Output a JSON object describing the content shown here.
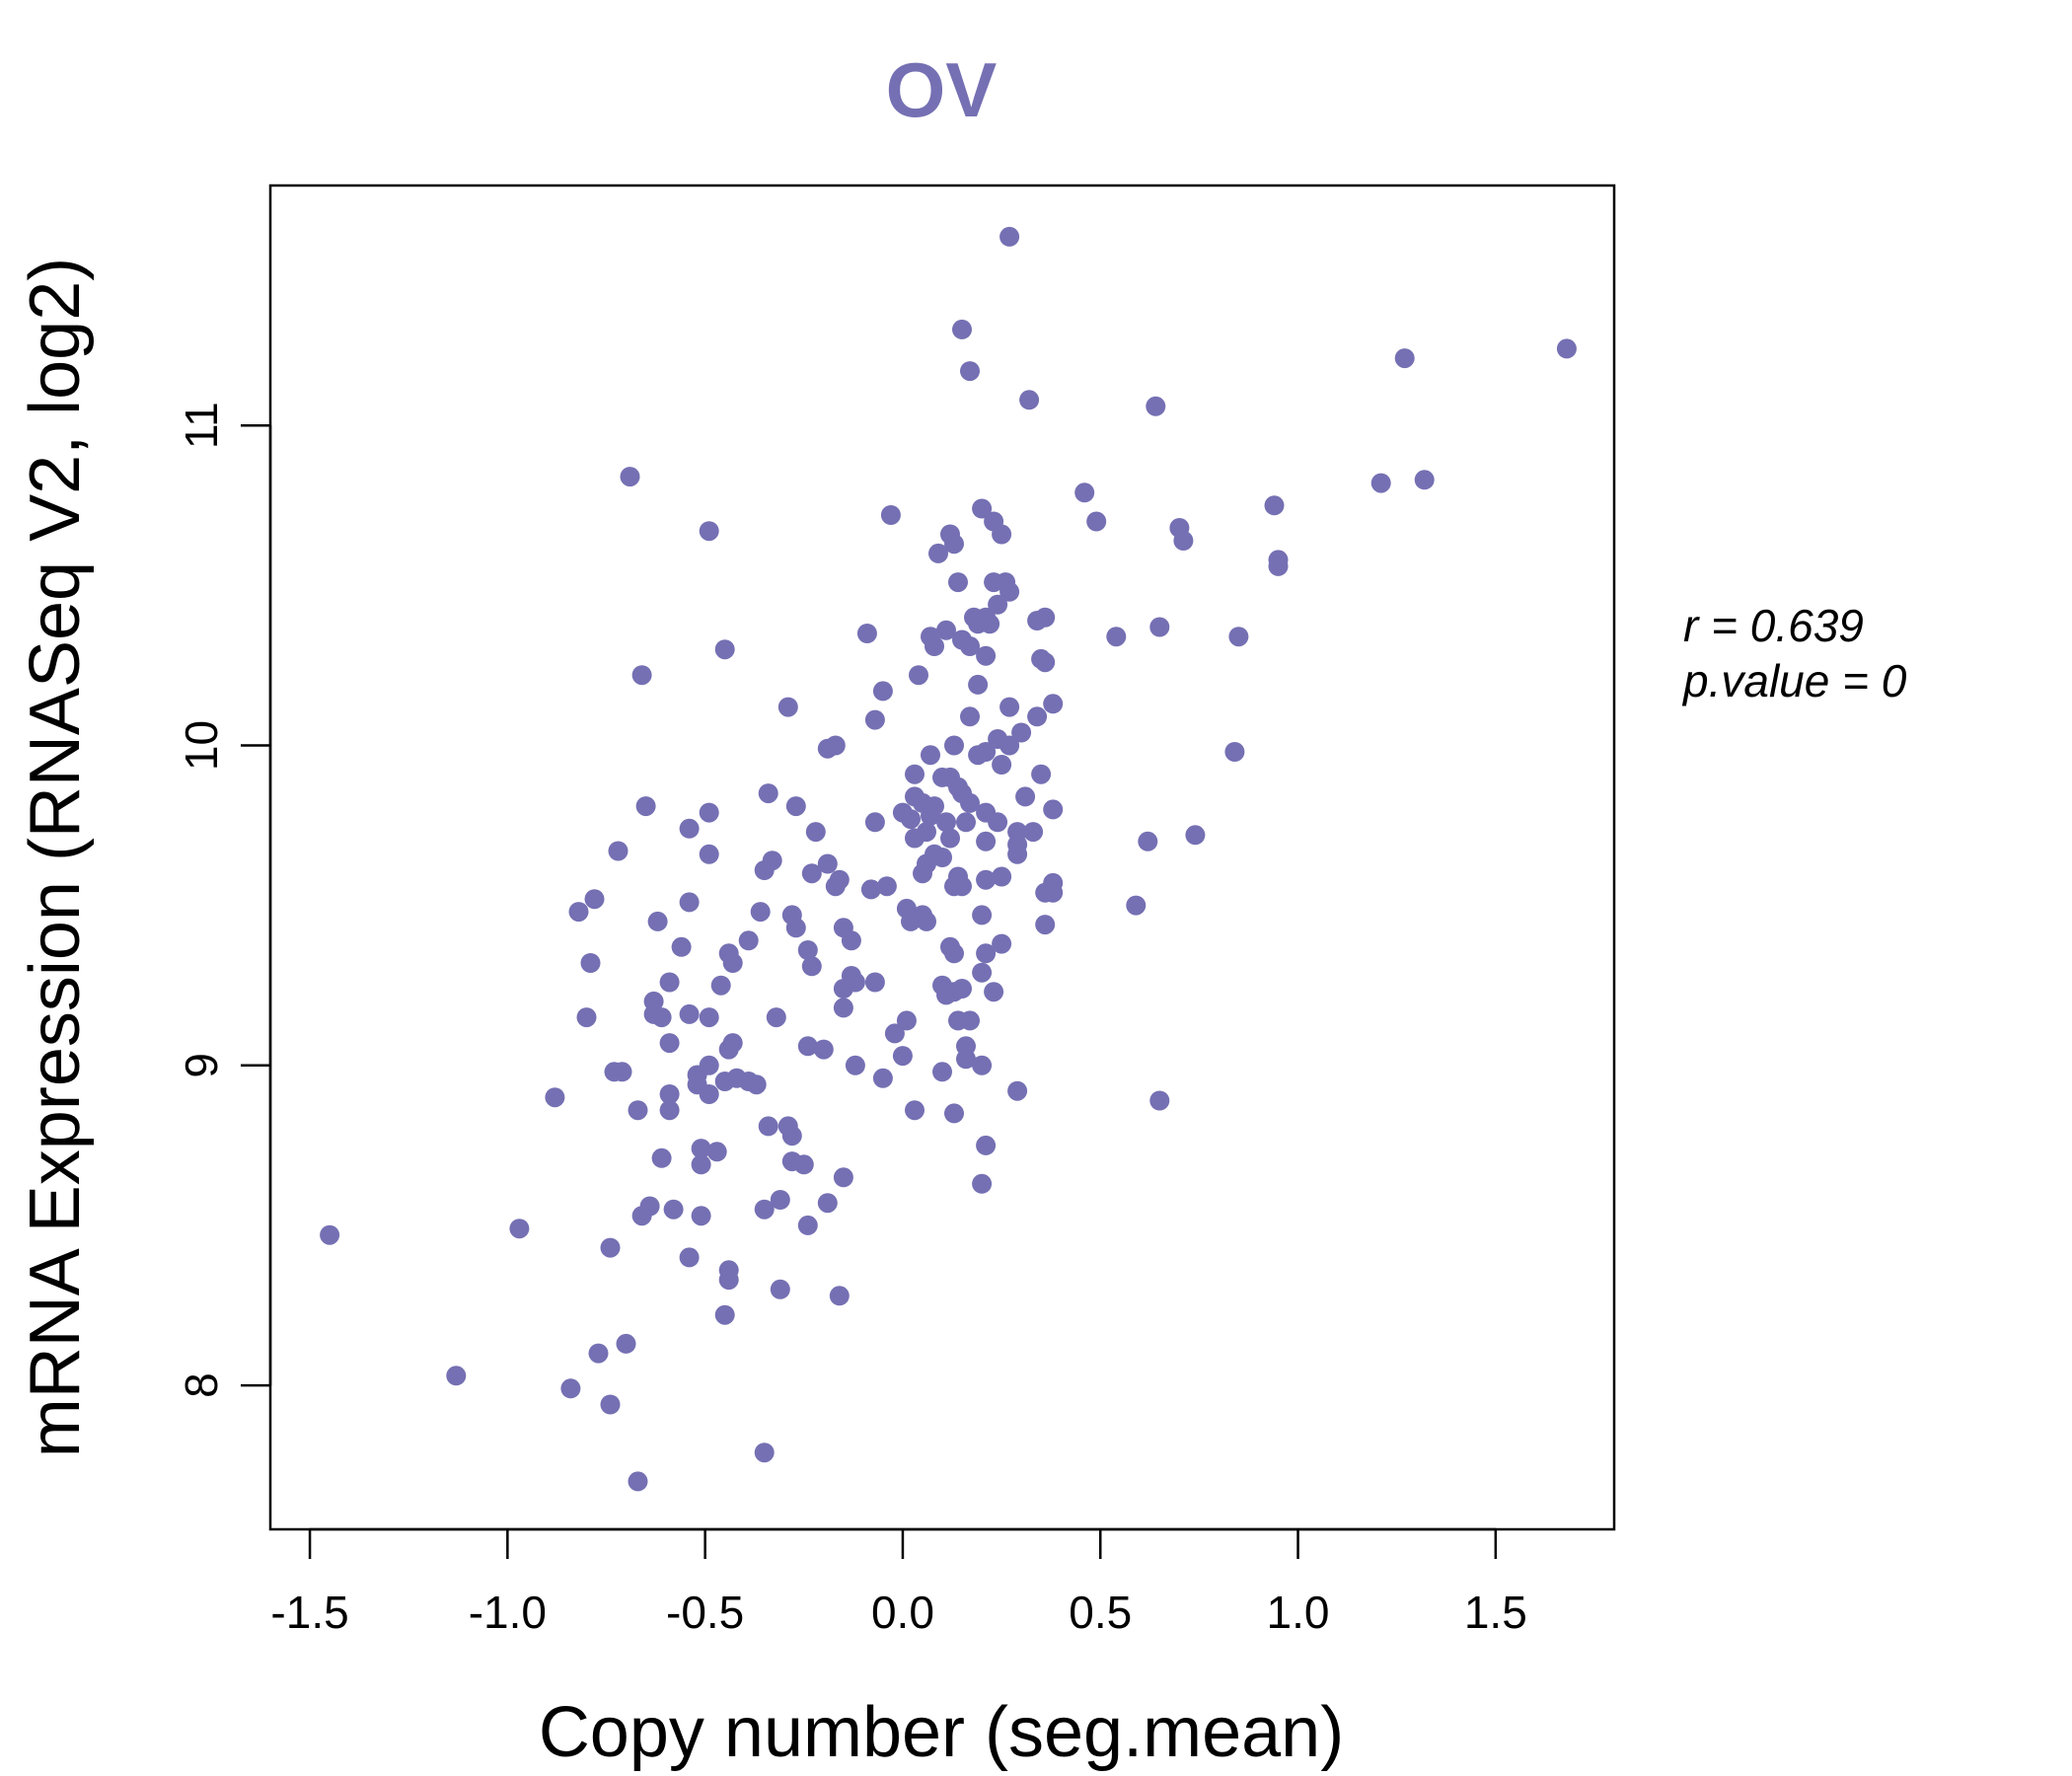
{
  "chart_data": {
    "type": "scatter",
    "title": "OV",
    "xlabel": "Copy number (seg.mean)",
    "ylabel": "mRNA Expression (RNASeq V2, log2)",
    "xlim": [
      -1.6,
      1.8
    ],
    "ylim": [
      7.55,
      11.75
    ],
    "x_ticks": [
      -1.5,
      -1.0,
      -0.5,
      0.0,
      0.5,
      1.0,
      1.5
    ],
    "x_tick_labels": [
      "-1.5",
      "-1.0",
      "-0.5",
      "0.0",
      "0.5",
      "1.0",
      "1.5"
    ],
    "y_ticks": [
      8,
      9,
      10,
      11
    ],
    "y_tick_labels": [
      "8",
      "9",
      "10",
      "11"
    ],
    "grid": false,
    "legend": null,
    "point_color": "#7570b3",
    "title_color": "#7570b3",
    "stats": {
      "r_label": "r = 0.639",
      "p_label": "p.value = 0"
    },
    "points": [
      [
        0.27,
        11.59
      ],
      [
        0.15,
        11.3
      ],
      [
        0.17,
        11.17
      ],
      [
        0.32,
        11.08
      ],
      [
        0.64,
        11.06
      ],
      [
        1.27,
        11.21
      ],
      [
        1.68,
        11.24
      ],
      [
        -0.69,
        10.84
      ],
      [
        -0.49,
        10.67
      ],
      [
        0.46,
        10.79
      ],
      [
        0.49,
        10.7
      ],
      [
        0.7,
        10.68
      ],
      [
        0.71,
        10.64
      ],
      [
        0.94,
        10.75
      ],
      [
        0.95,
        10.58
      ],
      [
        0.95,
        10.56
      ],
      [
        1.21,
        10.82
      ],
      [
        1.32,
        10.83
      ],
      [
        -0.03,
        10.72
      ],
      [
        0.12,
        10.66
      ],
      [
        0.13,
        10.63
      ],
      [
        0.09,
        10.6
      ],
      [
        0.2,
        10.74
      ],
      [
        0.23,
        10.7
      ],
      [
        0.25,
        10.66
      ],
      [
        0.14,
        10.51
      ],
      [
        0.23,
        10.51
      ],
      [
        0.26,
        10.51
      ],
      [
        0.27,
        10.48
      ],
      [
        0.24,
        10.44
      ],
      [
        0.18,
        10.4
      ],
      [
        0.19,
        10.38
      ],
      [
        0.21,
        10.4
      ],
      [
        0.22,
        10.38
      ],
      [
        0.34,
        10.39
      ],
      [
        0.36,
        10.4
      ],
      [
        0.11,
        10.36
      ],
      [
        0.07,
        10.34
      ],
      [
        0.15,
        10.33
      ],
      [
        0.17,
        10.31
      ],
      [
        0.08,
        10.31
      ],
      [
        0.21,
        10.28
      ],
      [
        -0.09,
        10.35
      ],
      [
        0.54,
        10.34
      ],
      [
        0.65,
        10.37
      ],
      [
        0.85,
        10.34
      ],
      [
        -0.45,
        10.3
      ],
      [
        -0.66,
        10.22
      ],
      [
        0.35,
        10.27
      ],
      [
        0.36,
        10.26
      ],
      [
        0.04,
        10.22
      ],
      [
        0.19,
        10.19
      ],
      [
        -0.05,
        10.17
      ],
      [
        -0.29,
        10.12
      ],
      [
        0.27,
        10.12
      ],
      [
        0.38,
        10.13
      ],
      [
        0.34,
        10.09
      ],
      [
        0.3,
        10.04
      ],
      [
        -0.07,
        10.08
      ],
      [
        0.17,
        10.09
      ],
      [
        -0.19,
        9.99
      ],
      [
        -0.17,
        10.0
      ],
      [
        0.24,
        10.02
      ],
      [
        0.27,
        10.0
      ],
      [
        0.13,
        10.0
      ],
      [
        0.84,
        9.98
      ],
      [
        0.07,
        9.97
      ],
      [
        0.19,
        9.97
      ],
      [
        0.21,
        9.98
      ],
      [
        0.25,
        9.94
      ],
      [
        0.03,
        9.91
      ],
      [
        0.12,
        9.9
      ],
      [
        0.1,
        9.9
      ],
      [
        0.14,
        9.87
      ],
      [
        0.15,
        9.85
      ],
      [
        0.03,
        9.84
      ],
      [
        0.05,
        9.82
      ],
      [
        0.08,
        9.81
      ],
      [
        0.17,
        9.82
      ],
      [
        -0.34,
        9.85
      ],
      [
        -0.27,
        9.81
      ],
      [
        -0.65,
        9.81
      ],
      [
        -0.49,
        9.79
      ],
      [
        -0.54,
        9.74
      ],
      [
        0.0,
        9.79
      ],
      [
        0.02,
        9.77
      ],
      [
        0.07,
        9.78
      ],
      [
        0.11,
        9.76
      ],
      [
        0.16,
        9.76
      ],
      [
        0.21,
        9.79
      ],
      [
        0.24,
        9.76
      ],
      [
        0.29,
        9.73
      ],
      [
        0.33,
        9.73
      ],
      [
        0.35,
        9.91
      ],
      [
        0.31,
        9.84
      ],
      [
        0.38,
        9.8
      ],
      [
        -0.07,
        9.76
      ],
      [
        -0.22,
        9.73
      ],
      [
        0.03,
        9.71
      ],
      [
        0.06,
        9.73
      ],
      [
        0.12,
        9.71
      ],
      [
        0.21,
        9.7
      ],
      [
        0.29,
        9.69
      ],
      [
        -0.72,
        9.67
      ],
      [
        -0.49,
        9.66
      ],
      [
        0.08,
        9.66
      ],
      [
        0.1,
        9.65
      ],
      [
        0.06,
        9.63
      ],
      [
        0.29,
        9.66
      ],
      [
        -0.33,
        9.64
      ],
      [
        -0.35,
        9.61
      ],
      [
        -0.19,
        9.63
      ],
      [
        -0.23,
        9.6
      ],
      [
        -0.16,
        9.58
      ],
      [
        -0.17,
        9.56
      ],
      [
        -0.04,
        9.56
      ],
      [
        -0.08,
        9.55
      ],
      [
        0.05,
        9.6
      ],
      [
        0.13,
        9.56
      ],
      [
        0.14,
        9.59
      ],
      [
        0.15,
        9.56
      ],
      [
        0.21,
        9.58
      ],
      [
        0.25,
        9.59
      ],
      [
        0.36,
        9.54
      ],
      [
        0.38,
        9.57
      ],
      [
        0.38,
        9.54
      ],
      [
        0.62,
        9.7
      ],
      [
        0.74,
        9.72
      ],
      [
        0.59,
        9.5
      ],
      [
        -0.78,
        9.52
      ],
      [
        -0.82,
        9.48
      ],
      [
        -0.54,
        9.51
      ],
      [
        -0.36,
        9.48
      ],
      [
        -0.28,
        9.47
      ],
      [
        -0.27,
        9.43
      ],
      [
        -0.62,
        9.45
      ],
      [
        -0.56,
        9.37
      ],
      [
        -0.44,
        9.35
      ],
      [
        -0.43,
        9.32
      ],
      [
        -0.39,
        9.39
      ],
      [
        -0.24,
        9.36
      ],
      [
        -0.23,
        9.31
      ],
      [
        -0.15,
        9.43
      ],
      [
        -0.13,
        9.39
      ],
      [
        0.01,
        9.49
      ],
      [
        0.02,
        9.45
      ],
      [
        0.05,
        9.47
      ],
      [
        0.06,
        9.45
      ],
      [
        0.12,
        9.37
      ],
      [
        0.13,
        9.35
      ],
      [
        0.2,
        9.47
      ],
      [
        0.25,
        9.38
      ],
      [
        0.36,
        9.44
      ],
      [
        0.21,
        9.35
      ],
      [
        0.2,
        9.29
      ],
      [
        -0.79,
        9.32
      ],
      [
        -0.59,
        9.26
      ],
      [
        -0.46,
        9.25
      ],
      [
        -0.63,
        9.2
      ],
      [
        -0.63,
        9.16
      ],
      [
        -0.61,
        9.15
      ],
      [
        -0.54,
        9.16
      ],
      [
        -0.49,
        9.15
      ],
      [
        -0.8,
        9.15
      ],
      [
        -0.32,
        9.15
      ],
      [
        -0.13,
        9.28
      ],
      [
        -0.12,
        9.26
      ],
      [
        -0.15,
        9.24
      ],
      [
        -0.07,
        9.26
      ],
      [
        -0.15,
        9.18
      ],
      [
        0.1,
        9.25
      ],
      [
        0.11,
        9.22
      ],
      [
        0.13,
        9.23
      ],
      [
        0.15,
        9.24
      ],
      [
        0.23,
        9.23
      ],
      [
        0.14,
        9.14
      ],
      [
        0.17,
        9.14
      ],
      [
        0.01,
        9.14
      ],
      [
        -0.02,
        9.1
      ],
      [
        -0.59,
        9.07
      ],
      [
        -0.43,
        9.07
      ],
      [
        -0.44,
        9.05
      ],
      [
        -0.24,
        9.06
      ],
      [
        -0.2,
        9.05
      ],
      [
        0.0,
        9.03
      ],
      [
        0.16,
        9.06
      ],
      [
        0.16,
        9.02
      ],
      [
        0.2,
        9.0
      ],
      [
        -0.73,
        8.98
      ],
      [
        -0.71,
        8.98
      ],
      [
        -0.52,
        8.97
      ],
      [
        -0.49,
        9.0
      ],
      [
        -0.52,
        8.94
      ],
      [
        -0.45,
        8.95
      ],
      [
        -0.42,
        8.96
      ],
      [
        -0.39,
        8.95
      ],
      [
        -0.37,
        8.94
      ],
      [
        -0.49,
        8.91
      ],
      [
        -0.12,
        9.0
      ],
      [
        -0.05,
        8.96
      ],
      [
        0.1,
        8.98
      ],
      [
        0.29,
        8.92
      ],
      [
        0.65,
        8.89
      ],
      [
        -0.88,
        8.9
      ],
      [
        -0.59,
        8.91
      ],
      [
        -0.67,
        8.86
      ],
      [
        -0.59,
        8.86
      ],
      [
        0.03,
        8.86
      ],
      [
        0.13,
        8.85
      ],
      [
        -0.34,
        8.81
      ],
      [
        -0.29,
        8.81
      ],
      [
        -0.28,
        8.78
      ],
      [
        -0.51,
        8.74
      ],
      [
        -0.47,
        8.73
      ],
      [
        -0.51,
        8.69
      ],
      [
        -0.61,
        8.71
      ],
      [
        -0.28,
        8.7
      ],
      [
        -0.25,
        8.69
      ],
      [
        -0.15,
        8.65
      ],
      [
        0.21,
        8.75
      ],
      [
        0.2,
        8.63
      ],
      [
        -0.64,
        8.56
      ],
      [
        -0.58,
        8.55
      ],
      [
        -0.66,
        8.53
      ],
      [
        -0.51,
        8.53
      ],
      [
        -0.31,
        8.58
      ],
      [
        -0.35,
        8.55
      ],
      [
        -0.19,
        8.57
      ],
      [
        -0.24,
        8.5
      ],
      [
        -1.45,
        8.47
      ],
      [
        -0.97,
        8.49
      ],
      [
        -0.74,
        8.43
      ],
      [
        -0.54,
        8.4
      ],
      [
        -0.44,
        8.36
      ],
      [
        -0.44,
        8.33
      ],
      [
        -0.31,
        8.3
      ],
      [
        -0.16,
        8.28
      ],
      [
        -0.45,
        8.22
      ],
      [
        -0.7,
        8.13
      ],
      [
        -0.77,
        8.1
      ],
      [
        -1.13,
        8.03
      ],
      [
        -0.84,
        7.99
      ],
      [
        -0.74,
        7.94
      ],
      [
        -0.35,
        7.79
      ],
      [
        -0.67,
        7.7
      ]
    ]
  }
}
